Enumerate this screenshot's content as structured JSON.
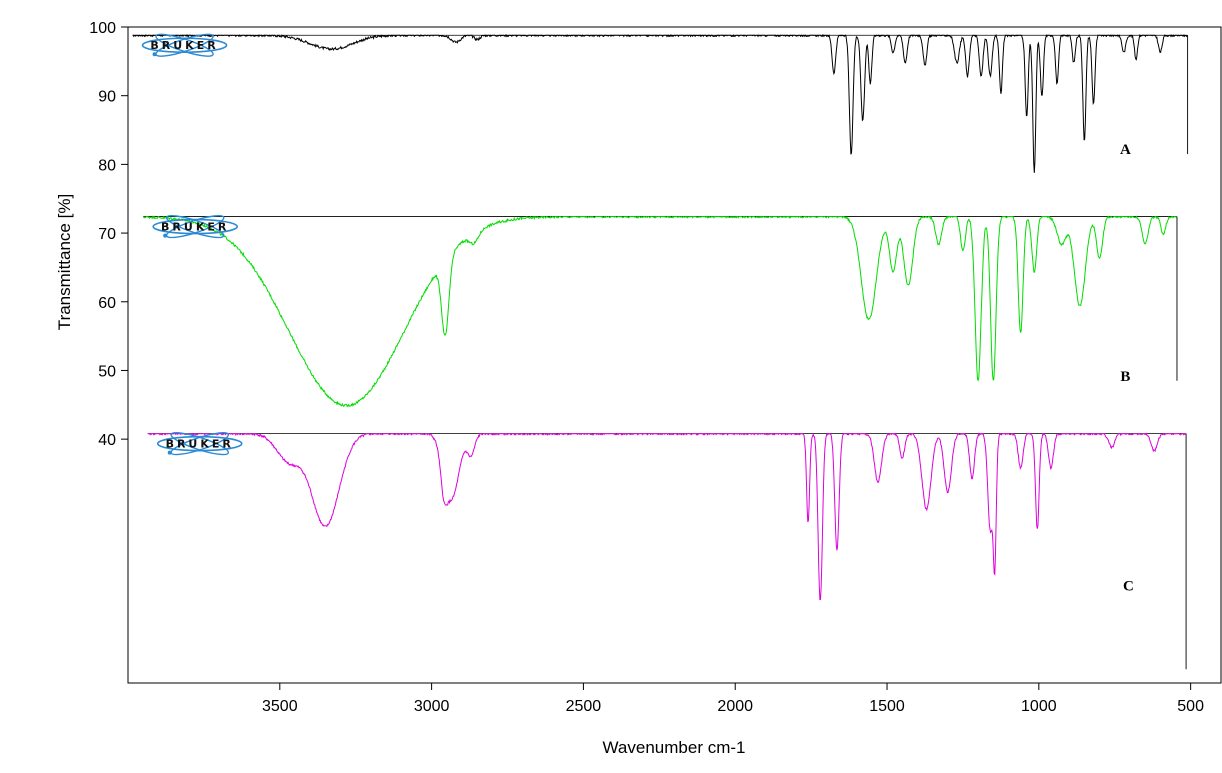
{
  "chart_data": {
    "type": "line",
    "title": "",
    "xlabel": "Wavenumber cm-1",
    "ylabel": "Transmittance [%]",
    "xlim": [
      4000,
      400
    ],
    "ylim": [
      4.5,
      100
    ],
    "x_ticks": [
      3500,
      3000,
      2500,
      2000,
      1500,
      1000,
      500
    ],
    "y_ticks": [
      100,
      90,
      80,
      70,
      60,
      50,
      40
    ],
    "x_tick_labels": [
      "3500",
      "3000",
      "2500",
      "2000",
      "1500",
      "1000",
      "500"
    ],
    "y_tick_labels": [
      "100",
      "90",
      "80",
      "70",
      "60",
      "50",
      "40"
    ],
    "logo_text": "BRUKER",
    "series": [
      {
        "label": "A",
        "color": "#000000",
        "x_range": [
          3985,
          510
        ],
        "baseline": 98.8,
        "label_at": [
          715,
          81.5
        ],
        "bands": [
          {
            "x": 3330,
            "depth": 2.0,
            "width": 70
          },
          {
            "x": 2920,
            "depth": 1.0,
            "width": 15
          },
          {
            "x": 2850,
            "depth": 0.6,
            "width": 10
          },
          {
            "x": 1675,
            "depth": 5.5,
            "width": 6
          },
          {
            "x": 1618,
            "depth": 17.5,
            "width": 6
          },
          {
            "x": 1580,
            "depth": 12.5,
            "width": 6
          },
          {
            "x": 1555,
            "depth": 7.0,
            "width": 5
          },
          {
            "x": 1480,
            "depth": 2.5,
            "width": 6
          },
          {
            "x": 1440,
            "depth": 4.0,
            "width": 6
          },
          {
            "x": 1375,
            "depth": 4.5,
            "width": 6
          },
          {
            "x": 1270,
            "depth": 4.0,
            "width": 8
          },
          {
            "x": 1235,
            "depth": 6.0,
            "width": 6
          },
          {
            "x": 1190,
            "depth": 6.0,
            "width": 6
          },
          {
            "x": 1160,
            "depth": 6.0,
            "width": 6
          },
          {
            "x": 1125,
            "depth": 8.5,
            "width": 5
          },
          {
            "x": 1040,
            "depth": 12.0,
            "width": 5
          },
          {
            "x": 1015,
            "depth": 20.0,
            "width": 5
          },
          {
            "x": 990,
            "depth": 9.0,
            "width": 5
          },
          {
            "x": 940,
            "depth": 7.0,
            "width": 5
          },
          {
            "x": 885,
            "depth": 4.0,
            "width": 5
          },
          {
            "x": 850,
            "depth": 15.5,
            "width": 5
          },
          {
            "x": 820,
            "depth": 10.0,
            "width": 5
          },
          {
            "x": 720,
            "depth": 2.5,
            "width": 6
          },
          {
            "x": 680,
            "depth": 3.5,
            "width": 5
          },
          {
            "x": 600,
            "depth": 2.5,
            "width": 6
          }
        ]
      },
      {
        "label": "B",
        "color": "#00dd00",
        "x_range": [
          3950,
          545
        ],
        "baseline": 72.4,
        "label_at": [
          715,
          48.5
        ],
        "bands": [
          {
            "x": 3280,
            "depth": 27.5,
            "width": 190
          },
          {
            "x": 2955,
            "depth": 11.0,
            "width": 12
          },
          {
            "x": 2860,
            "depth": 1.5,
            "width": 15
          },
          {
            "x": 1560,
            "depth": 15.0,
            "width": 25
          },
          {
            "x": 1480,
            "depth": 8.0,
            "width": 12
          },
          {
            "x": 1430,
            "depth": 10.0,
            "width": 15
          },
          {
            "x": 1330,
            "depth": 4.0,
            "width": 10
          },
          {
            "x": 1250,
            "depth": 5.0,
            "width": 8
          },
          {
            "x": 1200,
            "depth": 24.0,
            "width": 10
          },
          {
            "x": 1150,
            "depth": 24.0,
            "width": 9
          },
          {
            "x": 1060,
            "depth": 17.0,
            "width": 8
          },
          {
            "x": 1015,
            "depth": 8.0,
            "width": 8
          },
          {
            "x": 925,
            "depth": 4.0,
            "width": 15
          },
          {
            "x": 865,
            "depth": 13.0,
            "width": 18
          },
          {
            "x": 800,
            "depth": 6.0,
            "width": 10
          },
          {
            "x": 650,
            "depth": 4.0,
            "width": 10
          },
          {
            "x": 590,
            "depth": 2.5,
            "width": 8
          }
        ]
      },
      {
        "label": "C",
        "color": "#dd00dd",
        "x_range": [
          3935,
          515
        ],
        "baseline": 40.8,
        "label_at": [
          705,
          18
        ],
        "bands": [
          {
            "x": 3350,
            "depth": 13.5,
            "width": 45
          },
          {
            "x": 3470,
            "depth": 4.0,
            "width": 40
          },
          {
            "x": 2935,
            "depth": 9.5,
            "width": 25
          },
          {
            "x": 2960,
            "depth": 4.0,
            "width": 10
          },
          {
            "x": 2870,
            "depth": 3.0,
            "width": 12
          },
          {
            "x": 1760,
            "depth": 13.0,
            "width": 5
          },
          {
            "x": 1720,
            "depth": 24.5,
            "width": 7
          },
          {
            "x": 1665,
            "depth": 17.0,
            "width": 7
          },
          {
            "x": 1530,
            "depth": 7.0,
            "width": 12
          },
          {
            "x": 1450,
            "depth": 3.5,
            "width": 8
          },
          {
            "x": 1370,
            "depth": 11.0,
            "width": 15
          },
          {
            "x": 1300,
            "depth": 8.5,
            "width": 12
          },
          {
            "x": 1220,
            "depth": 6.5,
            "width": 8
          },
          {
            "x": 1160,
            "depth": 14.0,
            "width": 8
          },
          {
            "x": 1145,
            "depth": 18.0,
            "width": 5
          },
          {
            "x": 1060,
            "depth": 5.0,
            "width": 8
          },
          {
            "x": 1005,
            "depth": 14.0,
            "width": 6
          },
          {
            "x": 960,
            "depth": 5.0,
            "width": 8
          },
          {
            "x": 760,
            "depth": 2.0,
            "width": 10
          },
          {
            "x": 620,
            "depth": 2.5,
            "width": 10
          }
        ]
      }
    ]
  }
}
